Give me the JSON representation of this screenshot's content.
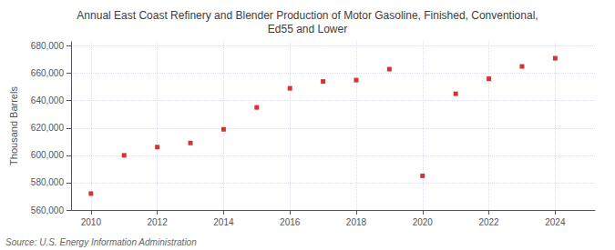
{
  "chart_data": {
    "type": "scatter",
    "title": "Annual East Coast Refinery and Blender Production of Motor Gasoline, Finished, Conventional,\nEd55 and Lower",
    "ylabel": "Thousand Barrels",
    "annotations": [
      "Source: U.S. Energy Information Administration"
    ],
    "x": [
      2010,
      2011,
      2012,
      2013,
      2014,
      2015,
      2016,
      2017,
      2018,
      2019,
      2020,
      2021,
      2022,
      2023,
      2024
    ],
    "values": [
      572000,
      600000,
      606000,
      609000,
      619000,
      635000,
      649000,
      654000,
      655000,
      663000,
      585000,
      645000,
      656000,
      665000,
      671000
    ],
    "color": "#cc0000",
    "marker": "square",
    "xlim": [
      2009.4,
      2025.2
    ],
    "xticks": [
      2010,
      2012,
      2014,
      2016,
      2018,
      2020,
      2022,
      2024
    ],
    "ylim": [
      560000,
      683000
    ],
    "yticks": [
      {
        "value": 560000,
        "label": "560,000"
      },
      {
        "value": 580000,
        "label": "580,000"
      },
      {
        "value": 600000,
        "label": "600,000"
      },
      {
        "value": 620000,
        "label": "620,000"
      },
      {
        "value": 640000,
        "label": "640,000"
      },
      {
        "value": 660000,
        "label": "660,000"
      },
      {
        "value": 680000,
        "label": "680,000"
      }
    ],
    "grid": true
  }
}
